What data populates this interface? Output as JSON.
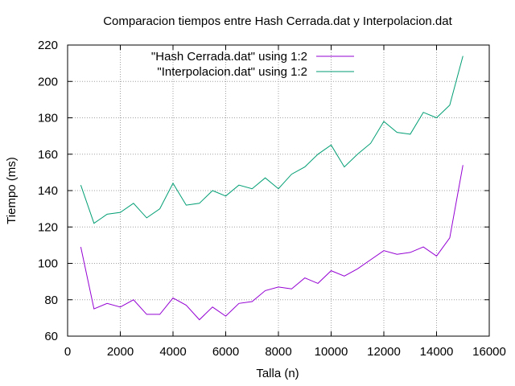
{
  "chart_data": {
    "type": "line",
    "title": "Comparacion tiempos entre Hash Cerrada.dat y Interpolacion.dat",
    "xlabel": "Talla (n)",
    "ylabel": "Tiempo (ms)",
    "xlim": [
      0,
      16000
    ],
    "ylim": [
      60,
      220
    ],
    "xticks": [
      "0",
      "2000",
      "4000",
      "6000",
      "8000",
      "10000",
      "12000",
      "14000",
      "16000"
    ],
    "yticks": [
      "60",
      "80",
      "100",
      "120",
      "140",
      "160",
      "180",
      "200",
      "220"
    ],
    "grid": true,
    "legend_position": "top-left",
    "x": [
      500,
      1000,
      1500,
      2000,
      2500,
      3000,
      3500,
      4000,
      4500,
      5000,
      5500,
      6000,
      6500,
      7000,
      7500,
      8000,
      8500,
      9000,
      9500,
      10000,
      10500,
      11000,
      11500,
      12000,
      12500,
      13000,
      13500,
      14000,
      14500,
      15000
    ],
    "series": [
      {
        "name": "\"Hash Cerrada.dat\" using 1:2",
        "color": "#9400d3",
        "values": [
          109,
          75,
          78,
          76,
          80,
          72,
          72,
          81,
          77,
          69,
          76,
          71,
          78,
          79,
          85,
          87,
          86,
          92,
          89,
          96,
          93,
          97,
          102,
          107,
          105,
          106,
          109,
          104,
          114,
          154
        ]
      },
      {
        "name": "\"Interpolacion.dat\" using 1:2",
        "color": "#009e73",
        "values": [
          143,
          122,
          127,
          128,
          133,
          125,
          130,
          144,
          132,
          133,
          140,
          137,
          143,
          141,
          147,
          141,
          149,
          153,
          160,
          165,
          153,
          160,
          166,
          178,
          172,
          171,
          183,
          180,
          187,
          214
        ]
      }
    ]
  }
}
